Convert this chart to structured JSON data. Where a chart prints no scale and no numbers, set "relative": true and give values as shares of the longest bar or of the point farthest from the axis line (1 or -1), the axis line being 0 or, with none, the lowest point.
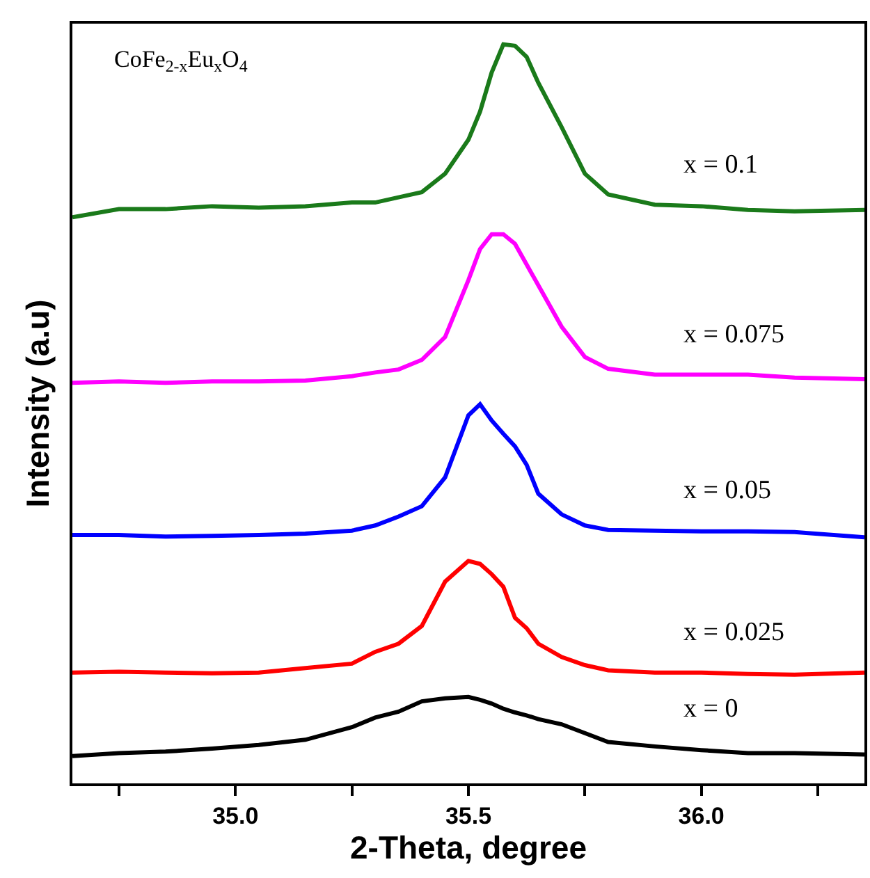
{
  "chart_data": {
    "type": "line",
    "relative": true,
    "title": "CoFe$_{2-x}$Eu$_{x}$O$_{4}$",
    "xlabel": "2-Theta, degree",
    "ylabel": "Intensity (a.u)",
    "x": [
      34.65,
      34.75,
      34.85,
      34.95,
      35.05,
      35.15,
      35.25,
      35.3,
      35.35,
      35.4,
      35.45,
      35.5,
      35.525,
      35.55,
      35.575,
      35.6,
      35.625,
      35.65,
      35.7,
      35.75,
      35.8,
      35.9,
      36.0,
      36.1,
      36.2,
      36.35
    ],
    "xlim": [
      34.65,
      36.35
    ],
    "xticks": [
      {
        "value": 34.75,
        "label": null
      },
      {
        "value": 35.0,
        "label": "35.0"
      },
      {
        "value": 35.25,
        "label": null
      },
      35.5,
      {
        "value": 35.75,
        "label": null
      },
      {
        "value": 36.0,
        "label": "36.0"
      },
      {
        "value": 36.25,
        "label": null
      }
    ],
    "series": [
      {
        "name": "x = 0",
        "color": "#000000",
        "values": [
          0.037,
          0.041,
          0.043,
          0.047,
          0.052,
          0.059,
          0.076,
          0.089,
          0.097,
          0.111,
          0.115,
          0.117,
          0.113,
          0.108,
          0.101,
          0.096,
          0.092,
          0.087,
          0.08,
          0.068,
          0.056,
          0.05,
          0.045,
          0.041,
          0.041,
          0.039
        ]
      },
      {
        "name": "x = 0.025",
        "color": "#ff0000",
        "values": [
          0.15,
          0.151,
          0.15,
          0.149,
          0.15,
          0.156,
          0.162,
          0.178,
          0.189,
          0.213,
          0.273,
          0.301,
          0.297,
          0.283,
          0.266,
          0.224,
          0.21,
          0.189,
          0.171,
          0.16,
          0.153,
          0.15,
          0.15,
          0.148,
          0.147,
          0.15
        ]
      },
      {
        "name": "x = 0.05",
        "color": "#0000ff",
        "values": [
          0.336,
          0.336,
          0.334,
          0.335,
          0.336,
          0.338,
          0.342,
          0.349,
          0.361,
          0.375,
          0.414,
          0.498,
          0.513,
          0.491,
          0.473,
          0.456,
          0.431,
          0.392,
          0.364,
          0.349,
          0.343,
          0.342,
          0.341,
          0.341,
          0.34,
          0.333
        ]
      },
      {
        "name": "x = 0.075",
        "color": "#ff00ff",
        "values": [
          0.542,
          0.544,
          0.542,
          0.544,
          0.544,
          0.545,
          0.551,
          0.556,
          0.56,
          0.573,
          0.604,
          0.681,
          0.723,
          0.743,
          0.743,
          0.73,
          0.702,
          0.674,
          0.618,
          0.577,
          0.561,
          0.553,
          0.553,
          0.553,
          0.549,
          0.547
        ]
      },
      {
        "name": "x = 0.1",
        "color": "#1a7a1a",
        "values": [
          0.766,
          0.777,
          0.777,
          0.781,
          0.779,
          0.781,
          0.786,
          0.786,
          0.793,
          0.8,
          0.825,
          0.871,
          0.909,
          0.962,
          1.0,
          0.998,
          0.983,
          0.948,
          0.888,
          0.825,
          0.797,
          0.783,
          0.781,
          0.776,
          0.774,
          0.776
        ]
      }
    ]
  }
}
